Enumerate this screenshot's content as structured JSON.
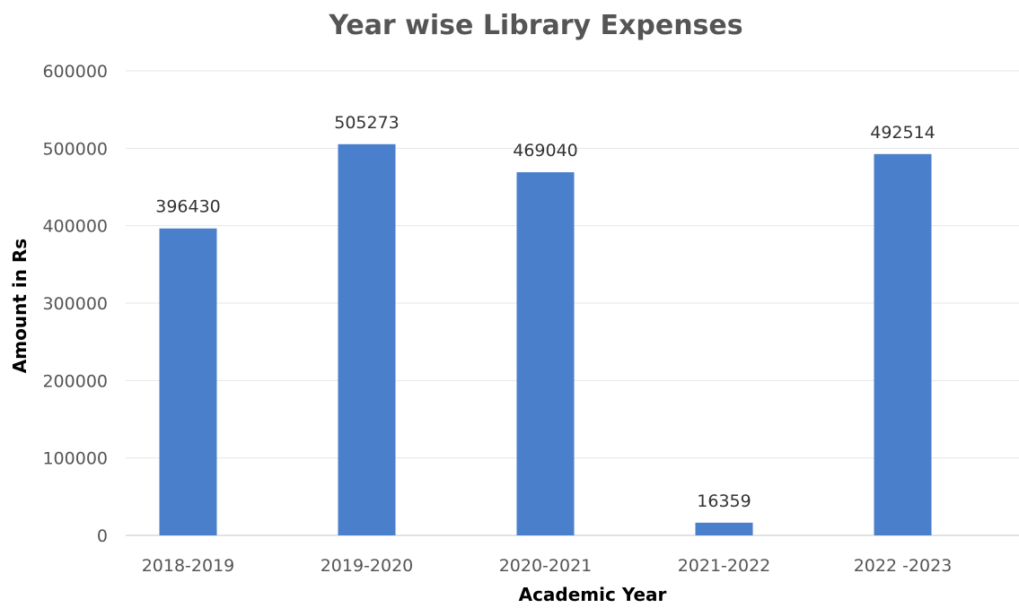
{
  "chart_data": {
    "type": "bar",
    "title": "Year wise Library Expenses",
    "xlabel": "Academic Year",
    "ylabel": "Amount in Rs",
    "categories": [
      "2018-2019",
      "2019-2020",
      "2020-2021",
      "2021-2022",
      "2022 -2023"
    ],
    "values": [
      396430,
      505273,
      469040,
      16359,
      492514
    ],
    "data_labels": [
      "396430",
      "505273",
      "469040",
      "16359",
      "492514"
    ],
    "ylim": [
      0,
      600000
    ],
    "yticks": [
      0,
      100000,
      200000,
      300000,
      400000,
      500000,
      600000
    ],
    "ytick_labels": [
      "0",
      "100000",
      "200000",
      "300000",
      "400000",
      "500000",
      "600000"
    ],
    "grid": true,
    "legend": "none",
    "bar_color": "#4a7fcb"
  }
}
